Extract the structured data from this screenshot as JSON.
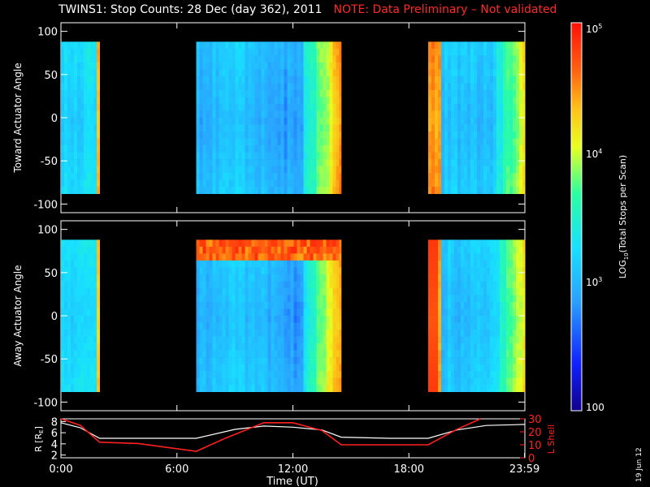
{
  "title": "TWINS1: Stop Counts: 28 Dec (day 362), 2011",
  "note": "NOTE: Data Preliminary – Not validated",
  "date_stamp": "19 Jun 12",
  "colors": {
    "background": "#000000",
    "note": "#ff2a2a",
    "l_shell": "#ff2020",
    "radius": "#ffffff"
  },
  "chart_data": [
    {
      "type": "heatmap",
      "panel": "top",
      "ylabel": "Toward Actuator Angle",
      "ylim": [
        -110,
        110
      ],
      "y_ticks": [
        "100",
        "50",
        "0",
        "-50",
        "-100"
      ],
      "x_range_hours": [
        0,
        24
      ],
      "angle_range": [
        -88,
        88
      ],
      "data_intervals_hours": [
        [
          0.0,
          2.0
        ],
        [
          7.0,
          14.5
        ],
        [
          19.0,
          24.0
        ]
      ],
      "color_scale": "log",
      "clim": [
        100,
        100000
      ]
    },
    {
      "type": "heatmap",
      "panel": "middle",
      "ylabel": "Away Actuator Angle",
      "ylim": [
        -110,
        110
      ],
      "y_ticks": [
        "100",
        "50",
        "0",
        "-50",
        "-100"
      ],
      "x_range_hours": [
        0,
        24
      ],
      "angle_range": [
        -88,
        88
      ],
      "data_intervals_hours": [
        [
          0.0,
          2.0
        ],
        [
          7.0,
          14.5
        ],
        [
          19.0,
          24.0
        ]
      ],
      "color_scale": "log",
      "clim": [
        100,
        100000
      ]
    },
    {
      "type": "line",
      "panel": "bottom",
      "ylabel_left": "R [R",
      "ylabel_left_sub": "E",
      "ylabel_left_end": "]",
      "ylabel_right": "L Shell",
      "xlabel": "Time (UT)",
      "x_ticks": [
        "0:00",
        "6:00",
        "12:00",
        "18:00",
        "23:59"
      ],
      "y_left_ticks": [
        "8",
        "6",
        "4",
        "2"
      ],
      "y_right_ticks": [
        "30",
        "20",
        "10",
        "0"
      ],
      "ylim_left": [
        1.5,
        8.5
      ],
      "ylim_right": [
        0,
        30
      ],
      "series": [
        {
          "name": "R",
          "axis": "left",
          "x": [
            0,
            1,
            2,
            4,
            7,
            9,
            10.5,
            12,
            13.5,
            14.5,
            17,
            19,
            20.5,
            22,
            24
          ],
          "y": [
            7.8,
            6.9,
            5.0,
            5.0,
            5.0,
            6.6,
            7.2,
            7.0,
            6.5,
            5.2,
            5.0,
            5.0,
            6.5,
            7.3,
            7.5
          ]
        },
        {
          "name": "L Shell",
          "axis": "right",
          "x": [
            0,
            1,
            2,
            4,
            7,
            8.5,
            10.5,
            12,
            13.5,
            14.5,
            17,
            19,
            20.5,
            21.7
          ],
          "y": [
            30,
            25,
            12,
            11,
            5,
            15,
            27,
            27,
            21,
            10,
            10,
            10,
            22,
            30
          ]
        }
      ]
    },
    {
      "type": "heatmap",
      "panel": "colorbar",
      "label": "LOG",
      "label_sub": "10",
      "label_end": "(Total Stops per Scan)",
      "ticks": [
        "10",
        "10",
        "10",
        "100"
      ],
      "tick_exponents": [
        "5",
        "4",
        "3",
        ""
      ]
    }
  ]
}
